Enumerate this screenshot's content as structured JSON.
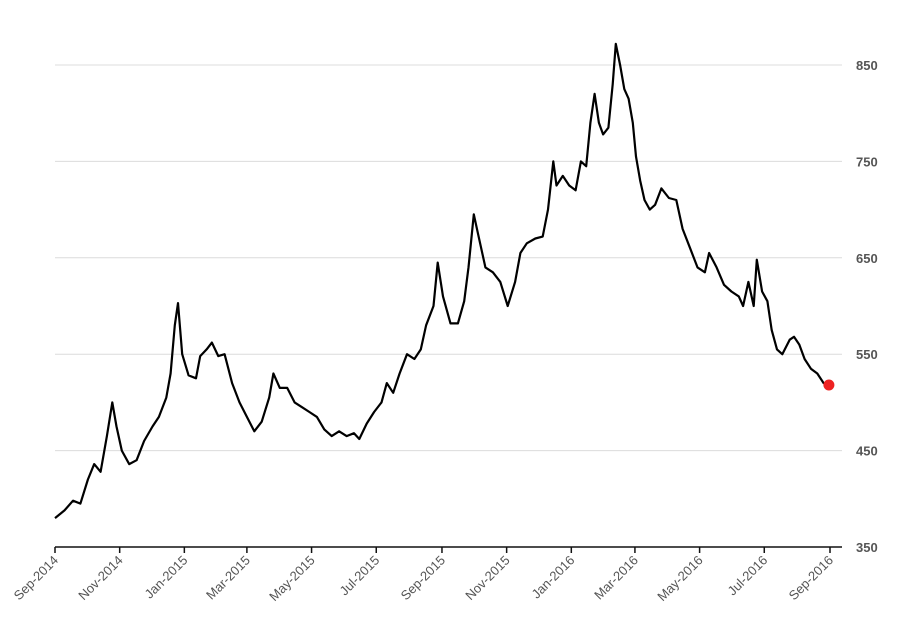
{
  "chart_data": {
    "type": "line",
    "title": "",
    "xlabel": "",
    "ylabel": "",
    "ylim": [
      350,
      850
    ],
    "yticks": [
      350,
      450,
      550,
      650,
      750,
      850
    ],
    "xticks": [
      "Sep-2014",
      "Nov-2014",
      "Jan-2015",
      "Mar-2015",
      "May-2015",
      "Jul-2015",
      "Sep-2015",
      "Nov-2015",
      "Jan-2016",
      "Mar-2016",
      "May-2016",
      "Jul-2016",
      "Sep-2016"
    ],
    "grid": true,
    "y_axis_position": "right",
    "line_color": "#000000",
    "endpoint_color": "#ee2222",
    "series": [
      {
        "name": "",
        "points": [
          [
            "2014-09-01",
            380
          ],
          [
            "2014-09-10",
            388
          ],
          [
            "2014-09-18",
            398
          ],
          [
            "2014-09-25",
            395
          ],
          [
            "2014-10-02",
            420
          ],
          [
            "2014-10-08",
            436
          ],
          [
            "2014-10-14",
            428
          ],
          [
            "2014-10-20",
            465
          ],
          [
            "2014-10-25",
            500
          ],
          [
            "2014-10-29",
            475
          ],
          [
            "2014-11-03",
            450
          ],
          [
            "2014-11-10",
            436
          ],
          [
            "2014-11-17",
            440
          ],
          [
            "2014-11-24",
            460
          ],
          [
            "2014-12-02",
            475
          ],
          [
            "2014-12-08",
            485
          ],
          [
            "2014-12-15",
            505
          ],
          [
            "2014-12-19",
            530
          ],
          [
            "2014-12-23",
            580
          ],
          [
            "2014-12-26",
            603
          ],
          [
            "2014-12-30",
            550
          ],
          [
            "2015-01-05",
            528
          ],
          [
            "2015-01-12",
            525
          ],
          [
            "2015-01-16",
            548
          ],
          [
            "2015-01-22",
            555
          ],
          [
            "2015-01-27",
            562
          ],
          [
            "2015-02-02",
            548
          ],
          [
            "2015-02-08",
            550
          ],
          [
            "2015-02-15",
            520
          ],
          [
            "2015-02-22",
            500
          ],
          [
            "2015-03-01",
            485
          ],
          [
            "2015-03-08",
            470
          ],
          [
            "2015-03-15",
            480
          ],
          [
            "2015-03-22",
            505
          ],
          [
            "2015-03-26",
            530
          ],
          [
            "2015-04-01",
            515
          ],
          [
            "2015-04-08",
            515
          ],
          [
            "2015-04-15",
            500
          ],
          [
            "2015-04-22",
            495
          ],
          [
            "2015-04-29",
            490
          ],
          [
            "2015-05-06",
            485
          ],
          [
            "2015-05-13",
            472
          ],
          [
            "2015-05-20",
            465
          ],
          [
            "2015-05-27",
            470
          ],
          [
            "2015-06-03",
            465
          ],
          [
            "2015-06-10",
            468
          ],
          [
            "2015-06-15",
            462
          ],
          [
            "2015-06-22",
            478
          ],
          [
            "2015-06-29",
            490
          ],
          [
            "2015-07-06",
            500
          ],
          [
            "2015-07-11",
            520
          ],
          [
            "2015-07-17",
            510
          ],
          [
            "2015-07-23",
            530
          ],
          [
            "2015-07-30",
            550
          ],
          [
            "2015-08-06",
            545
          ],
          [
            "2015-08-12",
            555
          ],
          [
            "2015-08-17",
            580
          ],
          [
            "2015-08-24",
            600
          ],
          [
            "2015-08-28",
            645
          ],
          [
            "2015-09-02",
            610
          ],
          [
            "2015-09-09",
            582
          ],
          [
            "2015-09-16",
            582
          ],
          [
            "2015-09-22",
            605
          ],
          [
            "2015-09-26",
            640
          ],
          [
            "2015-10-01",
            695
          ],
          [
            "2015-10-05",
            675
          ],
          [
            "2015-10-12",
            640
          ],
          [
            "2015-10-19",
            635
          ],
          [
            "2015-10-26",
            625
          ],
          [
            "2015-11-02",
            600
          ],
          [
            "2015-11-09",
            625
          ],
          [
            "2015-11-14",
            655
          ],
          [
            "2015-11-20",
            665
          ],
          [
            "2015-11-28",
            670
          ],
          [
            "2015-12-05",
            672
          ],
          [
            "2015-12-10",
            700
          ],
          [
            "2015-12-15",
            750
          ],
          [
            "2015-12-18",
            725
          ],
          [
            "2015-12-24",
            735
          ],
          [
            "2015-12-30",
            725
          ],
          [
            "2016-01-05",
            720
          ],
          [
            "2016-01-10",
            750
          ],
          [
            "2016-01-15",
            745
          ],
          [
            "2016-01-19",
            790
          ],
          [
            "2016-01-23",
            820
          ],
          [
            "2016-01-27",
            790
          ],
          [
            "2016-01-31",
            778
          ],
          [
            "2016-02-05",
            785
          ],
          [
            "2016-02-09",
            830
          ],
          [
            "2016-02-12",
            872
          ],
          [
            "2016-02-16",
            850
          ],
          [
            "2016-02-20",
            825
          ],
          [
            "2016-02-24",
            815
          ],
          [
            "2016-02-28",
            790
          ],
          [
            "2016-03-02",
            755
          ],
          [
            "2016-03-06",
            730
          ],
          [
            "2016-03-10",
            710
          ],
          [
            "2016-03-15",
            700
          ],
          [
            "2016-03-20",
            705
          ],
          [
            "2016-03-26",
            722
          ],
          [
            "2016-04-02",
            712
          ],
          [
            "2016-04-09",
            710
          ],
          [
            "2016-04-15",
            680
          ],
          [
            "2016-04-22",
            660
          ],
          [
            "2016-04-29",
            640
          ],
          [
            "2016-05-06",
            635
          ],
          [
            "2016-05-10",
            655
          ],
          [
            "2016-05-17",
            640
          ],
          [
            "2016-05-24",
            622
          ],
          [
            "2016-05-31",
            615
          ],
          [
            "2016-06-07",
            610
          ],
          [
            "2016-06-11",
            600
          ],
          [
            "2016-06-16",
            625
          ],
          [
            "2016-06-21",
            600
          ],
          [
            "2016-06-24",
            648
          ],
          [
            "2016-06-29",
            615
          ],
          [
            "2016-07-04",
            605
          ],
          [
            "2016-07-08",
            575
          ],
          [
            "2016-07-13",
            555
          ],
          [
            "2016-07-18",
            550
          ],
          [
            "2016-07-25",
            565
          ],
          [
            "2016-07-29",
            568
          ],
          [
            "2016-08-03",
            560
          ],
          [
            "2016-08-08",
            545
          ],
          [
            "2016-08-14",
            535
          ],
          [
            "2016-08-20",
            530
          ],
          [
            "2016-08-26",
            520
          ],
          [
            "2016-08-31",
            518
          ]
        ]
      }
    ]
  }
}
